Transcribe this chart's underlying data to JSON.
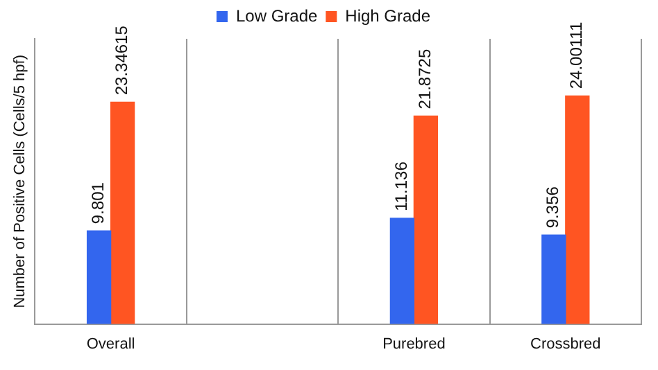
{
  "chart_data": {
    "type": "bar",
    "ylabel": "Number of Positive Cells (Cells/5 hpf)",
    "categories": [
      "Overall",
      null,
      "Purebred",
      "Crossbred"
    ],
    "series": [
      {
        "name": "Low Grade",
        "color": "#3366ee",
        "values": [
          9.801,
          null,
          11.136,
          9.356
        ]
      },
      {
        "name": "High Grade",
        "color": "#ff5522",
        "values": [
          23.34615,
          null,
          21.8725,
          24.00111
        ]
      }
    ],
    "ylim": [
      0,
      30
    ],
    "grid": "x",
    "legend": "top",
    "tick_labels": "x",
    "data_labels": true
  }
}
